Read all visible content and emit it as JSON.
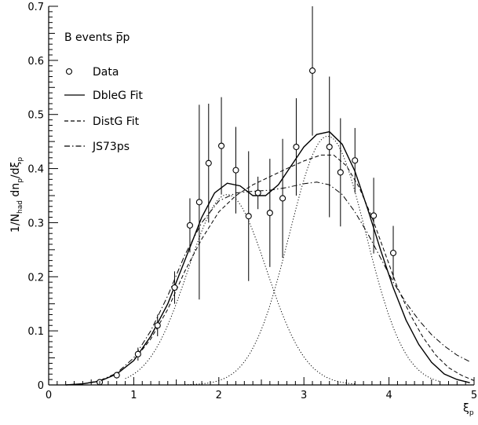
{
  "chart_data": {
    "type": "scatter",
    "title": "B events p̅p",
    "xlabel": "ξ",
    "xlabel_sub": "p",
    "ylabel": "1/N",
    "ylabel_parts": [
      "1/N",
      "had",
      " dn",
      "p",
      "/dξ",
      "p"
    ],
    "xlim": [
      0,
      5
    ],
    "ylim": [
      0,
      0.7
    ],
    "xticks": [
      0,
      1,
      2,
      3,
      4,
      5
    ],
    "yticks": [
      0,
      0.1,
      0.2,
      0.3,
      0.4,
      0.5,
      0.6,
      0.7
    ],
    "xtick_labels": [
      "0",
      "1",
      "2",
      "3",
      "4",
      "5"
    ],
    "ytick_labels": [
      "0",
      "0.1",
      "0.2",
      "0.3",
      "0.4",
      "0.5",
      "0.6",
      "0.7"
    ],
    "legend": [
      {
        "label": "Data",
        "style": "marker"
      },
      {
        "label": "DbleG Fit",
        "style": "solid"
      },
      {
        "label": "DistG Fit",
        "style": "dashed"
      },
      {
        "label": "JS73ps",
        "style": "dashdot"
      }
    ],
    "data_points": [
      {
        "x": 0.6,
        "y": 0.005,
        "err": 0.004
      },
      {
        "x": 0.8,
        "y": 0.018,
        "err": 0.006
      },
      {
        "x": 1.05,
        "y": 0.057,
        "err": 0.012
      },
      {
        "x": 1.28,
        "y": 0.11,
        "err": 0.02
      },
      {
        "x": 1.48,
        "y": 0.18,
        "err": 0.03
      },
      {
        "x": 1.66,
        "y": 0.295,
        "err": 0.05
      },
      {
        "x": 1.77,
        "y": 0.338,
        "err": 0.18
      },
      {
        "x": 1.88,
        "y": 0.41,
        "err": 0.11
      },
      {
        "x": 2.03,
        "y": 0.442,
        "err": 0.09
      },
      {
        "x": 2.2,
        "y": 0.397,
        "err": 0.08
      },
      {
        "x": 2.35,
        "y": 0.312,
        "err": 0.12
      },
      {
        "x": 2.46,
        "y": 0.355,
        "err": 0.03
      },
      {
        "x": 2.6,
        "y": 0.318,
        "err": 0.1
      },
      {
        "x": 2.75,
        "y": 0.345,
        "err": 0.11
      },
      {
        "x": 2.91,
        "y": 0.44,
        "err": 0.09
      },
      {
        "x": 3.1,
        "y": 0.581,
        "err": 0.12
      },
      {
        "x": 3.3,
        "y": 0.44,
        "err": 0.13
      },
      {
        "x": 3.43,
        "y": 0.393,
        "err": 0.1
      },
      {
        "x": 3.6,
        "y": 0.415,
        "err": 0.06
      },
      {
        "x": 3.82,
        "y": 0.313,
        "err": 0.07
      },
      {
        "x": 4.05,
        "y": 0.244,
        "err": 0.05
      }
    ],
    "curves": {
      "dbleg": {
        "label": "DbleG Fit",
        "points": [
          [
            0.2,
            0.0
          ],
          [
            0.4,
            0.002
          ],
          [
            0.6,
            0.007
          ],
          [
            0.8,
            0.02
          ],
          [
            1.0,
            0.045
          ],
          [
            1.2,
            0.09
          ],
          [
            1.4,
            0.15
          ],
          [
            1.6,
            0.23
          ],
          [
            1.8,
            0.31
          ],
          [
            1.95,
            0.355
          ],
          [
            2.1,
            0.373
          ],
          [
            2.25,
            0.368
          ],
          [
            2.4,
            0.35
          ],
          [
            2.55,
            0.35
          ],
          [
            2.7,
            0.37
          ],
          [
            2.85,
            0.405
          ],
          [
            3.0,
            0.44
          ],
          [
            3.15,
            0.463
          ],
          [
            3.3,
            0.468
          ],
          [
            3.45,
            0.445
          ],
          [
            3.6,
            0.395
          ],
          [
            3.75,
            0.325
          ],
          [
            3.9,
            0.25
          ],
          [
            4.05,
            0.18
          ],
          [
            4.2,
            0.12
          ],
          [
            4.35,
            0.075
          ],
          [
            4.5,
            0.042
          ],
          [
            4.65,
            0.02
          ],
          [
            4.8,
            0.01
          ],
          [
            4.95,
            0.004
          ]
        ]
      },
      "distg": {
        "label": "DistG Fit",
        "points": [
          [
            0.2,
            0.0
          ],
          [
            0.4,
            0.002
          ],
          [
            0.6,
            0.007
          ],
          [
            0.8,
            0.02
          ],
          [
            1.0,
            0.045
          ],
          [
            1.2,
            0.085
          ],
          [
            1.4,
            0.14
          ],
          [
            1.6,
            0.21
          ],
          [
            1.8,
            0.27
          ],
          [
            2.0,
            0.32
          ],
          [
            2.2,
            0.35
          ],
          [
            2.4,
            0.37
          ],
          [
            2.6,
            0.385
          ],
          [
            2.8,
            0.4
          ],
          [
            3.0,
            0.414
          ],
          [
            3.2,
            0.425
          ],
          [
            3.35,
            0.425
          ],
          [
            3.5,
            0.405
          ],
          [
            3.65,
            0.365
          ],
          [
            3.8,
            0.31
          ],
          [
            3.95,
            0.245
          ],
          [
            4.1,
            0.18
          ],
          [
            4.25,
            0.13
          ],
          [
            4.4,
            0.088
          ],
          [
            4.55,
            0.055
          ],
          [
            4.7,
            0.032
          ],
          [
            4.85,
            0.018
          ],
          [
            5.0,
            0.008
          ]
        ]
      },
      "js73ps": {
        "label": "JS73ps",
        "points": [
          [
            0.2,
            0.0
          ],
          [
            0.4,
            0.002
          ],
          [
            0.6,
            0.008
          ],
          [
            0.8,
            0.022
          ],
          [
            1.0,
            0.05
          ],
          [
            1.2,
            0.1
          ],
          [
            1.4,
            0.165
          ],
          [
            1.6,
            0.24
          ],
          [
            1.8,
            0.3
          ],
          [
            2.0,
            0.34
          ],
          [
            2.2,
            0.355
          ],
          [
            2.4,
            0.358
          ],
          [
            2.6,
            0.36
          ],
          [
            2.8,
            0.365
          ],
          [
            3.0,
            0.372
          ],
          [
            3.15,
            0.375
          ],
          [
            3.3,
            0.37
          ],
          [
            3.45,
            0.352
          ],
          [
            3.6,
            0.32
          ],
          [
            3.75,
            0.28
          ],
          [
            3.9,
            0.235
          ],
          [
            4.05,
            0.19
          ],
          [
            4.2,
            0.152
          ],
          [
            4.35,
            0.12
          ],
          [
            4.5,
            0.093
          ],
          [
            4.65,
            0.072
          ],
          [
            4.8,
            0.055
          ],
          [
            4.95,
            0.043
          ]
        ]
      },
      "gauss1": {
        "mean": 2.1,
        "sigma": 0.46,
        "amp": 0.352,
        "xmin": 0.9,
        "xmax": 3.6
      },
      "gauss2": {
        "mean": 3.28,
        "sigma": 0.45,
        "amp": 0.46,
        "xmin": 1.6,
        "xmax": 4.6
      }
    }
  }
}
